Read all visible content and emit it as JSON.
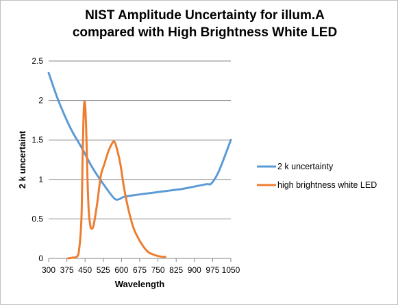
{
  "chart_data": {
    "type": "line",
    "title_lines": [
      "NIST Amplitude Uncertainty for illum.A",
      "compared with High Brightness White LED"
    ],
    "xlabel": "Wavelength",
    "ylabel": "2 k uncertaint",
    "xlim": [
      300,
      1050
    ],
    "ylim": [
      0,
      2.5
    ],
    "x_ticks": [
      300,
      375,
      450,
      525,
      600,
      675,
      750,
      825,
      900,
      975,
      1050
    ],
    "y_ticks": [
      0,
      0.5,
      1,
      1.5,
      2,
      2.5
    ],
    "y_tick_labels": [
      "0",
      "0.5",
      "1",
      "1.5",
      "2",
      "2.5"
    ],
    "grid": "horizontal",
    "legend_position": "right",
    "series": [
      {
        "name": "2 k uncertainty",
        "color": "#5b9bd5",
        "x": [
          300,
          340,
          390,
          440,
          480,
          530,
          570,
          590,
          610,
          650,
          700,
          750,
          775,
          800,
          850,
          900,
          950,
          970,
          1000,
          1050
        ],
        "y": [
          2.35,
          2.0,
          1.65,
          1.38,
          1.15,
          0.92,
          0.76,
          0.75,
          0.78,
          0.8,
          0.82,
          0.84,
          0.85,
          0.86,
          0.88,
          0.91,
          0.94,
          0.95,
          1.1,
          1.5
        ]
      },
      {
        "name": "high brightness white LED",
        "color": "#ed7d31",
        "x": [
          380,
          400,
          415,
          425,
          435,
          440,
          445,
          450,
          455,
          460,
          465,
          470,
          475,
          485,
          500,
          515,
          530,
          545,
          560,
          570,
          580,
          595,
          610,
          630,
          650,
          670,
          690,
          710,
          730,
          750,
          770,
          780
        ],
        "y": [
          0.0,
          0.01,
          0.02,
          0.1,
          0.5,
          1.3,
          1.9,
          1.95,
          1.6,
          1.0,
          0.6,
          0.45,
          0.38,
          0.42,
          0.7,
          1.05,
          1.2,
          1.35,
          1.45,
          1.48,
          1.4,
          1.2,
          0.9,
          0.6,
          0.38,
          0.25,
          0.15,
          0.08,
          0.05,
          0.03,
          0.02,
          0.02
        ]
      }
    ]
  }
}
